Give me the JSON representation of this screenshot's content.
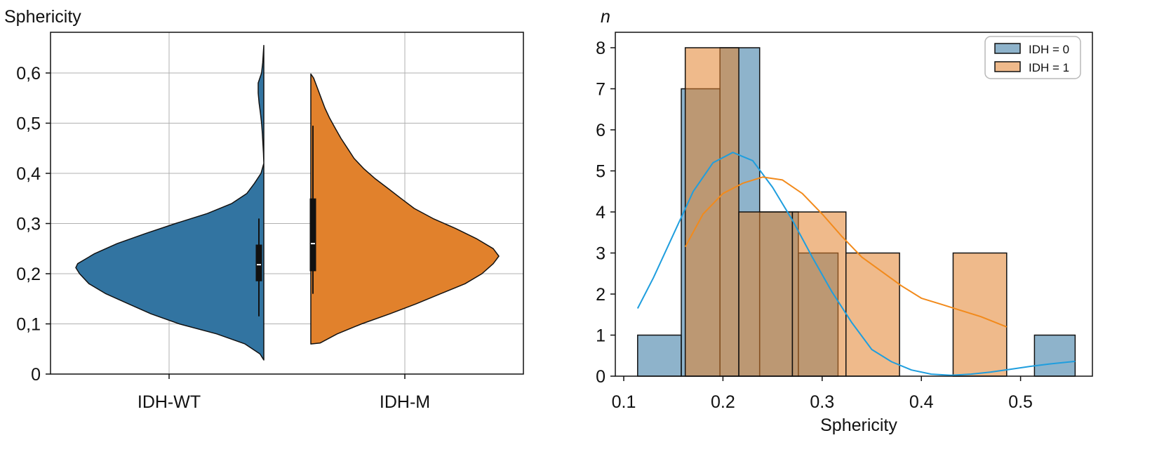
{
  "chart_data": [
    {
      "type": "violin",
      "ylabel": "Sphericity",
      "categories": [
        "IDH-WT",
        "IDH-M"
      ],
      "yticks": [
        0,
        0.1,
        0.2,
        0.3,
        0.4,
        0.5,
        0.6
      ],
      "ytick_labels": [
        "0",
        "0,1",
        "0,2",
        "0,3",
        "0,4",
        "0,5",
        "0,6"
      ],
      "ylim": [
        0,
        0.68
      ],
      "grid": true,
      "series": [
        {
          "category": "IDH-WT",
          "side": "left",
          "color": "#3274A1",
          "box": {
            "whisker_low": 0.115,
            "q1": 0.185,
            "median": 0.218,
            "q3": 0.258,
            "whisker_high": 0.31
          },
          "profile": [
            [
              0.028,
              0.0
            ],
            [
              0.04,
              0.02
            ],
            [
              0.06,
              0.1
            ],
            [
              0.08,
              0.25
            ],
            [
              0.1,
              0.45
            ],
            [
              0.12,
              0.6
            ],
            [
              0.14,
              0.72
            ],
            [
              0.16,
              0.84
            ],
            [
              0.18,
              0.93
            ],
            [
              0.2,
              0.98
            ],
            [
              0.212,
              1.0
            ],
            [
              0.22,
              0.99
            ],
            [
              0.24,
              0.9
            ],
            [
              0.26,
              0.78
            ],
            [
              0.28,
              0.63
            ],
            [
              0.3,
              0.47
            ],
            [
              0.32,
              0.3
            ],
            [
              0.34,
              0.17
            ],
            [
              0.36,
              0.09
            ],
            [
              0.38,
              0.05
            ],
            [
              0.4,
              0.015
            ],
            [
              0.42,
              0.0
            ],
            [
              0.44,
              0.002
            ],
            [
              0.46,
              0.005
            ],
            [
              0.48,
              0.008
            ],
            [
              0.5,
              0.012
            ],
            [
              0.52,
              0.018
            ],
            [
              0.54,
              0.025
            ],
            [
              0.56,
              0.03
            ],
            [
              0.58,
              0.03
            ],
            [
              0.6,
              0.012
            ],
            [
              0.62,
              0.006
            ],
            [
              0.655,
              0.0
            ]
          ]
        },
        {
          "category": "IDH-M",
          "side": "right",
          "color": "#E1812C",
          "box": {
            "whisker_low": 0.16,
            "q1": 0.205,
            "median": 0.26,
            "q3": 0.35,
            "whisker_high": 0.495
          },
          "profile": [
            [
              0.06,
              0.0
            ],
            [
              0.062,
              0.05
            ],
            [
              0.08,
              0.14
            ],
            [
              0.1,
              0.27
            ],
            [
              0.12,
              0.42
            ],
            [
              0.14,
              0.56
            ],
            [
              0.16,
              0.69
            ],
            [
              0.18,
              0.82
            ],
            [
              0.2,
              0.91
            ],
            [
              0.22,
              0.97
            ],
            [
              0.235,
              1.0
            ],
            [
              0.25,
              0.97
            ],
            [
              0.27,
              0.88
            ],
            [
              0.29,
              0.77
            ],
            [
              0.31,
              0.65
            ],
            [
              0.33,
              0.55
            ],
            [
              0.35,
              0.48
            ],
            [
              0.37,
              0.41
            ],
            [
              0.39,
              0.34
            ],
            [
              0.41,
              0.28
            ],
            [
              0.43,
              0.23
            ],
            [
              0.45,
              0.195
            ],
            [
              0.47,
              0.16
            ],
            [
              0.49,
              0.13
            ],
            [
              0.51,
              0.1
            ],
            [
              0.53,
              0.075
            ],
            [
              0.55,
              0.055
            ],
            [
              0.57,
              0.035
            ],
            [
              0.59,
              0.015
            ],
            [
              0.598,
              0.0
            ]
          ]
        }
      ]
    },
    {
      "type": "histogram",
      "xlabel": "Sphericity",
      "ylabel": "n",
      "xticks": [
        0.1,
        0.2,
        0.3,
        0.4,
        0.5
      ],
      "xtick_labels": [
        "0.1",
        "0.2",
        "0.3",
        "0.4",
        "0.5"
      ],
      "yticks": [
        0,
        1,
        2,
        3,
        4,
        5,
        6,
        7,
        8
      ],
      "xlim": [
        0.09,
        0.57
      ],
      "ylim": [
        0,
        8.4
      ],
      "legend": "top-right",
      "series": [
        {
          "name": "IDH = 0",
          "color": "#3274A1",
          "bins": [
            [
              0.114,
              0.158,
              1
            ],
            [
              0.158,
              0.197,
              7
            ],
            [
              0.197,
              0.237,
              8
            ],
            [
              0.237,
              0.276,
              4
            ],
            [
              0.276,
              0.316,
              3
            ],
            [
              0.316,
              0.356,
              0
            ],
            [
              0.356,
              0.395,
              0
            ],
            [
              0.395,
              0.435,
              0
            ],
            [
              0.435,
              0.474,
              0
            ],
            [
              0.474,
              0.514,
              0
            ],
            [
              0.514,
              0.555,
              1
            ]
          ],
          "kde": [
            [
              0.114,
              1.65
            ],
            [
              0.13,
              2.4
            ],
            [
              0.15,
              3.45
            ],
            [
              0.17,
              4.5
            ],
            [
              0.19,
              5.2
            ],
            [
              0.21,
              5.45
            ],
            [
              0.23,
              5.25
            ],
            [
              0.25,
              4.6
            ],
            [
              0.27,
              3.8
            ],
            [
              0.29,
              2.9
            ],
            [
              0.31,
              2.05
            ],
            [
              0.33,
              1.3
            ],
            [
              0.35,
              0.65
            ],
            [
              0.37,
              0.35
            ],
            [
              0.39,
              0.15
            ],
            [
              0.41,
              0.05
            ],
            [
              0.43,
              0.02
            ],
            [
              0.45,
              0.05
            ],
            [
              0.47,
              0.1
            ],
            [
              0.49,
              0.17
            ],
            [
              0.51,
              0.24
            ],
            [
              0.53,
              0.3
            ],
            [
              0.555,
              0.36
            ]
          ]
        },
        {
          "name": "IDH = 1",
          "color": "#E1812C",
          "bins": [
            [
              0.162,
              0.216,
              8
            ],
            [
              0.216,
              0.27,
              4
            ],
            [
              0.27,
              0.324,
              4
            ],
            [
              0.324,
              0.378,
              3
            ],
            [
              0.378,
              0.432,
              0
            ],
            [
              0.432,
              0.486,
              3
            ]
          ],
          "kde": [
            [
              0.162,
              3.15
            ],
            [
              0.18,
              3.95
            ],
            [
              0.2,
              4.45
            ],
            [
              0.22,
              4.7
            ],
            [
              0.24,
              4.85
            ],
            [
              0.26,
              4.78
            ],
            [
              0.28,
              4.45
            ],
            [
              0.3,
              3.95
            ],
            [
              0.32,
              3.4
            ],
            [
              0.34,
              2.9
            ],
            [
              0.36,
              2.55
            ],
            [
              0.38,
              2.2
            ],
            [
              0.4,
              1.9
            ],
            [
              0.42,
              1.75
            ],
            [
              0.44,
              1.6
            ],
            [
              0.46,
              1.45
            ],
            [
              0.486,
              1.2
            ]
          ]
        }
      ]
    }
  ]
}
